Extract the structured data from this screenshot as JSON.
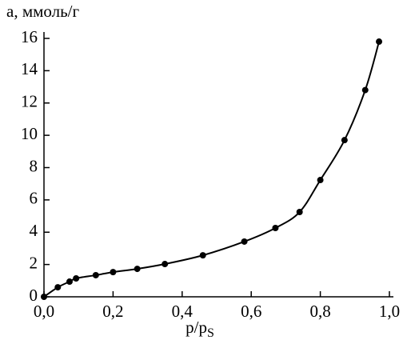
{
  "chart_data": {
    "type": "line",
    "y_label": "a, ммоль/г",
    "x_label": "p/p",
    "x_label_subscript": "S",
    "x": [
      0,
      0.04,
      0.074,
      0.093,
      0.15,
      0.2,
      0.27,
      0.35,
      0.46,
      0.58,
      0.67,
      0.74,
      0.8,
      0.87,
      0.93,
      0.97
    ],
    "series": [
      {
        "color": "#000000",
        "values": [
          0,
          0.59,
          0.94,
          1.14,
          1.34,
          1.53,
          1.73,
          2.03,
          2.57,
          3.42,
          4.26,
          5.25,
          7.23,
          9.7,
          12.8,
          15.8
        ]
      }
    ],
    "xlim": [
      0,
      1.0
    ],
    "xticks": [
      {
        "value": 0,
        "label": "0,0"
      },
      {
        "value": 0.2,
        "label": "0,2"
      },
      {
        "value": 0.4,
        "label": "0,4"
      },
      {
        "value": 0.6,
        "label": "0,6"
      },
      {
        "value": 0.8,
        "label": "0,8"
      },
      {
        "value": 1.0,
        "label": "1,0"
      }
    ],
    "ylim": [
      0,
      16
    ],
    "yticks": [
      0,
      2,
      4,
      6,
      8,
      10,
      12,
      14,
      16
    ]
  }
}
